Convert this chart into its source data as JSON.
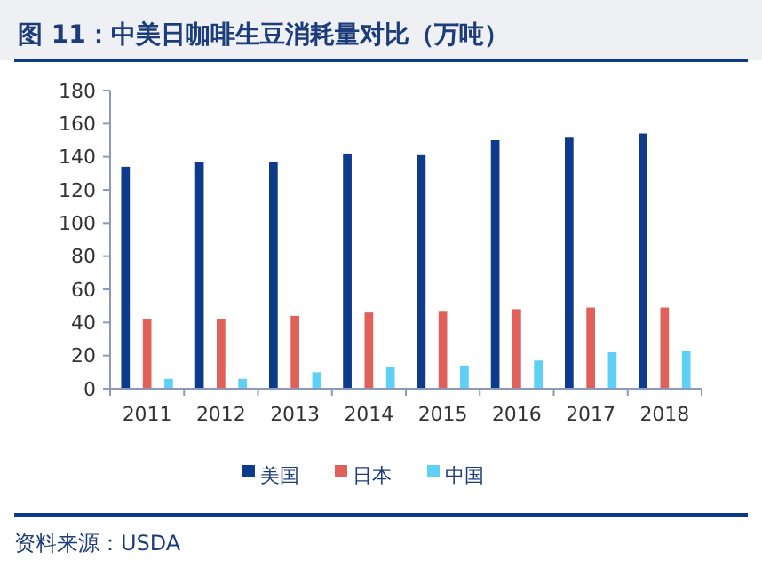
{
  "chart_data": {
    "type": "bar",
    "title": "图 11：中美日咖啡生豆消耗量对比（万吨）",
    "categories": [
      "2011",
      "2012",
      "2013",
      "2014",
      "2015",
      "2016",
      "2017",
      "2018"
    ],
    "series": [
      {
        "name": "美国",
        "color": "#0d3a8a",
        "values": [
          134,
          137,
          137,
          142,
          141,
          150,
          152,
          154
        ]
      },
      {
        "name": "日本",
        "color": "#e0605a",
        "values": [
          42,
          42,
          44,
          46,
          47,
          48,
          49,
          49
        ]
      },
      {
        "name": "中国",
        "color": "#5fd0f5",
        "values": [
          6,
          6,
          10,
          13,
          14,
          17,
          22,
          23
        ]
      }
    ],
    "ylim": [
      0,
      180
    ],
    "yticks": [
      0,
      20,
      40,
      60,
      80,
      100,
      120,
      140,
      160,
      180
    ],
    "grid": false,
    "legend": "bottom",
    "annotations": [
      "资料来源：USDA"
    ]
  }
}
